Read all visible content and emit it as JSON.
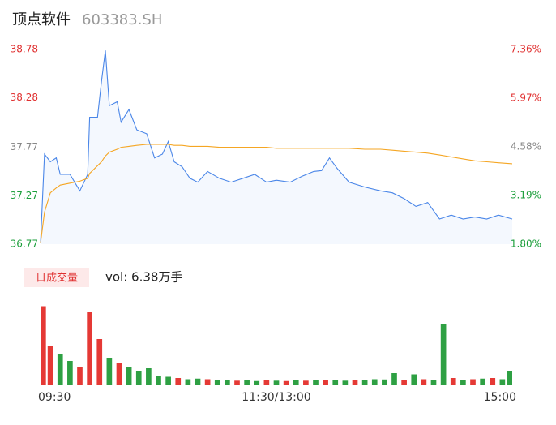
{
  "header": {
    "title": "顶点软件",
    "code": "603383.SH"
  },
  "chart_data": [
    {
      "type": "line",
      "x": [
        0,
        2,
        5,
        8,
        10,
        15,
        20,
        24,
        25,
        29,
        31,
        33,
        35,
        39,
        41,
        45,
        49,
        54,
        58,
        62,
        65,
        68,
        72,
        76,
        80,
        85,
        91,
        97,
        103,
        109,
        115,
        120,
        127,
        133,
        139,
        143,
        147,
        151,
        157,
        165,
        173,
        179,
        185,
        191,
        197,
        203,
        209,
        215,
        221,
        227,
        233,
        240
      ],
      "series": [
        {
          "color": "#4a86e8",
          "area": true,
          "values": [
            36.78,
            37.7,
            37.62,
            37.66,
            37.49,
            37.49,
            37.32,
            37.49,
            38.08,
            38.08,
            38.45,
            38.77,
            38.2,
            38.24,
            38.03,
            38.16,
            37.95,
            37.91,
            37.66,
            37.7,
            37.83,
            37.62,
            37.57,
            37.45,
            37.41,
            37.52,
            37.45,
            37.41,
            37.45,
            37.49,
            37.41,
            37.43,
            37.41,
            37.47,
            37.52,
            37.53,
            37.66,
            37.55,
            37.41,
            37.36,
            37.32,
            37.3,
            37.24,
            37.16,
            37.2,
            37.03,
            37.07,
            37.03,
            37.05,
            37.03,
            37.07,
            37.03
          ]
        },
        {
          "color": "#f5a623",
          "values": [
            36.78,
            37.1,
            37.3,
            37.35,
            37.38,
            37.4,
            37.42,
            37.45,
            37.5,
            37.58,
            37.62,
            37.68,
            37.72,
            37.75,
            37.77,
            37.78,
            37.79,
            37.8,
            37.8,
            37.8,
            37.8,
            37.79,
            37.79,
            37.78,
            37.78,
            37.78,
            37.77,
            37.77,
            37.77,
            37.77,
            37.77,
            37.76,
            37.76,
            37.76,
            37.76,
            37.76,
            37.76,
            37.76,
            37.76,
            37.75,
            37.75,
            37.74,
            37.73,
            37.72,
            37.71,
            37.69,
            37.67,
            37.65,
            37.63,
            37.62,
            37.61,
            37.6
          ]
        }
      ],
      "xlim": [
        0,
        240
      ],
      "ylim": [
        36.77,
        38.78
      ],
      "yticks": [
        36.77,
        37.27,
        37.77,
        38.28,
        38.78
      ],
      "y2lim": [
        1.8,
        7.36
      ],
      "y2ticks": [
        {
          "value": 1.8,
          "label": "1.80%"
        },
        {
          "value": 3.19,
          "label": "3.19%"
        },
        {
          "value": 4.58,
          "label": "4.58%"
        },
        {
          "value": 5.97,
          "label": "5.97%"
        },
        {
          "value": 7.36,
          "label": "7.36%"
        }
      ],
      "tick_colors": [
        "#1a9e3a",
        "#1a9e3a",
        "#888888",
        "#e03030",
        "#e03030"
      ],
      "grid": false
    },
    {
      "type": "bar",
      "title": "日成交量",
      "subtitle": "vol: 6.38万手",
      "x": [
        0,
        5,
        10,
        15,
        20,
        25,
        30,
        35,
        40,
        45,
        50,
        55,
        60,
        65,
        70,
        75,
        80,
        85,
        90,
        95,
        100,
        105,
        110,
        115,
        120,
        125,
        130,
        135,
        140,
        145,
        150,
        155,
        160,
        165,
        170,
        175,
        180,
        185,
        190,
        195,
        200,
        205,
        210,
        215,
        220,
        225,
        230,
        235,
        240
      ],
      "values": [
        6500,
        3200,
        2600,
        2000,
        1500,
        6000,
        3800,
        2200,
        1800,
        1500,
        1200,
        1400,
        800,
        700,
        600,
        500,
        550,
        500,
        450,
        400,
        380,
        400,
        350,
        420,
        380,
        350,
        400,
        380,
        450,
        400,
        420,
        380,
        450,
        400,
        500,
        480,
        1000,
        450,
        900,
        500,
        400,
        5000,
        600,
        450,
        500,
        550,
        600,
        500,
        1200
      ],
      "colors": [
        "#e53935",
        "#e53935",
        "#2ea043",
        "#2ea043",
        "#e53935",
        "#e53935",
        "#e53935",
        "#2ea043",
        "#e53935",
        "#2ea043",
        "#2ea043",
        "#2ea043",
        "#2ea043",
        "#2ea043",
        "#e53935",
        "#2ea043",
        "#2ea043",
        "#e53935",
        "#2ea043",
        "#2ea043",
        "#e53935",
        "#2ea043",
        "#2ea043",
        "#e53935",
        "#2ea043",
        "#e53935",
        "#2ea043",
        "#e53935",
        "#2ea043",
        "#e53935",
        "#2ea043",
        "#2ea043",
        "#e53935",
        "#2ea043",
        "#2ea043",
        "#2ea043",
        "#2ea043",
        "#e53935",
        "#2ea043",
        "#e53935",
        "#2ea043",
        "#2ea043",
        "#e53935",
        "#2ea043",
        "#e53935",
        "#2ea043",
        "#e53935",
        "#2ea043",
        "#2ea043"
      ],
      "xlim": [
        0,
        240
      ],
      "ylim": [
        0,
        7000
      ],
      "xticks": [
        {
          "value": 0,
          "label": "09:30"
        },
        {
          "value": 120,
          "label": "11:30/13:00"
        },
        {
          "value": 240,
          "label": "15:00"
        }
      ]
    }
  ]
}
